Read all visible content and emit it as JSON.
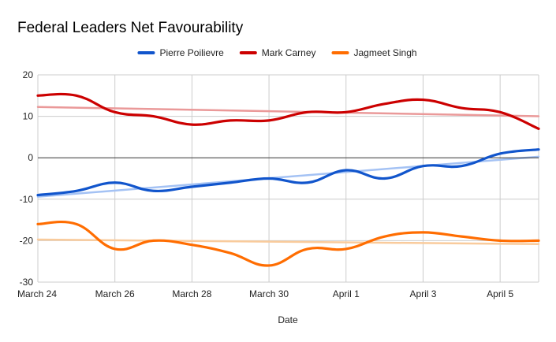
{
  "chart_data": {
    "type": "line",
    "title": "Federal Leaders Net Favourability",
    "xlabel": "Date",
    "ylabel": "",
    "x": [
      "March 24",
      "March 25",
      "March 26",
      "March 27",
      "March 28",
      "March 29",
      "March 30",
      "March 31",
      "April 1",
      "April 2",
      "April 3",
      "April 4",
      "April 5",
      "April 6"
    ],
    "x_tick_labels": [
      "March 24",
      "March 26",
      "March 28",
      "March 30",
      "April 1",
      "April 3",
      "April 5"
    ],
    "ylim": [
      -30,
      20
    ],
    "y_ticks": [
      -30,
      -20,
      -10,
      0,
      10,
      20
    ],
    "grid": true,
    "legend_position": "top",
    "trendlines": true,
    "series": [
      {
        "name": "Pierre Poilievre",
        "color": "#1155cc",
        "trend_color": "#a4c2f4",
        "values": [
          -9,
          -8,
          -6,
          -8,
          -7,
          -6,
          -5,
          -6,
          -3,
          -5,
          -2,
          -2,
          1,
          2
        ]
      },
      {
        "name": "Mark Carney",
        "color": "#cc0000",
        "trend_color": "#ea9999",
        "values": [
          15,
          15,
          11,
          10,
          8,
          9,
          9,
          11,
          11,
          13,
          14,
          12,
          11,
          7
        ]
      },
      {
        "name": "Jagmeet Singh",
        "color": "#ff6d01",
        "trend_color": "#f9cb9c",
        "values": [
          -16,
          -16,
          -22,
          -20,
          -21,
          -23,
          -26,
          -22,
          -22,
          -19,
          -18,
          -19,
          -20,
          -20
        ]
      }
    ]
  }
}
